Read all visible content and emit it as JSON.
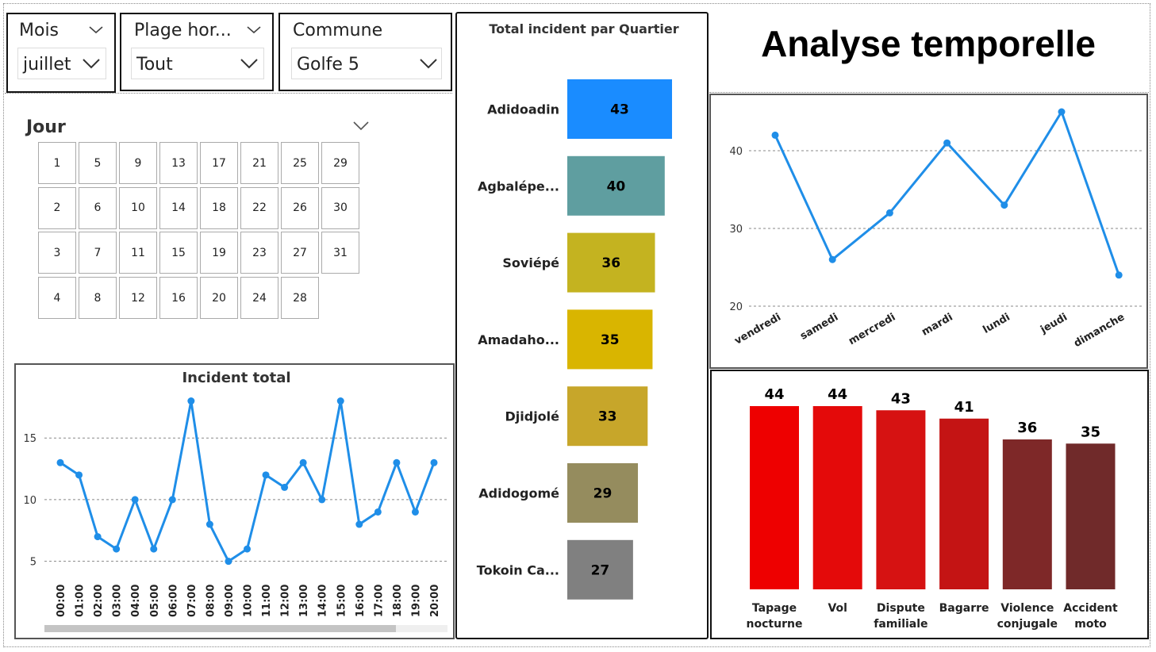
{
  "page_title": "Analyse temporelle",
  "filters": [
    {
      "label": "Mois",
      "value": "juillet"
    },
    {
      "label": "Plage hor...",
      "value": "Tout"
    },
    {
      "label": "Commune",
      "value": "Golfe 5"
    }
  ],
  "jour": {
    "label": "Jour",
    "columns": [
      [
        "1",
        "2",
        "3",
        "4"
      ],
      [
        "5",
        "6",
        "7",
        "8"
      ],
      [
        "9",
        "10",
        "11",
        "12"
      ],
      [
        "13",
        "14",
        "15",
        "16"
      ],
      [
        "17",
        "18",
        "19",
        "20"
      ],
      [
        "21",
        "22",
        "23",
        "24"
      ],
      [
        "25",
        "26",
        "27",
        "28"
      ],
      [
        "29",
        "30",
        "31"
      ]
    ]
  },
  "chart_data": [
    {
      "type": "line",
      "title": "Incident total",
      "x": [
        "00:00",
        "01:00",
        "02:00",
        "03:00",
        "04:00",
        "05:00",
        "06:00",
        "07:00",
        "08:00",
        "09:00",
        "10:00",
        "11:00",
        "12:00",
        "13:00",
        "14:00",
        "15:00",
        "16:00",
        "17:00",
        "18:00",
        "19:00",
        "20:00"
      ],
      "values": [
        13,
        12,
        7,
        6,
        10,
        6,
        10,
        18,
        8,
        5,
        6,
        12,
        11,
        13,
        10,
        18,
        8,
        9,
        13,
        9,
        13
      ],
      "yticks": [
        5,
        10,
        15
      ],
      "ylim": [
        3.5,
        19
      ],
      "color": "#1f8ee8"
    },
    {
      "type": "bar",
      "orientation": "horizontal",
      "title": "Total incident par Quartier",
      "categories": [
        "Adidoadin",
        "Agbalépe...",
        "Soviépé",
        "Amadaho...",
        "Djidjolé",
        "Adidogomé",
        "Tokoin Ca..."
      ],
      "values": [
        43,
        40,
        36,
        35,
        33,
        29,
        27
      ],
      "colors": [
        "#1a8cff",
        "#5f9ea0",
        "#c4b320",
        "#d9b500",
        "#c7a62a",
        "#958c5e",
        "#808080"
      ]
    },
    {
      "type": "line",
      "x": [
        "vendredi",
        "samedi",
        "mercredi",
        "mardi",
        "lundi",
        "jeudi",
        "dimanche"
      ],
      "values": [
        42,
        26,
        32,
        41,
        33,
        45,
        24
      ],
      "yticks": [
        20,
        30,
        40
      ],
      "ylim": [
        20,
        47
      ],
      "color": "#1f8ee8"
    },
    {
      "type": "bar",
      "categories": [
        [
          "Tapage",
          "nocturne"
        ],
        [
          "Vol"
        ],
        [
          "Dispute",
          "familiale"
        ],
        [
          "Bagarre"
        ],
        [
          "Violence",
          "conjugale"
        ],
        [
          "Accident",
          "moto"
        ]
      ],
      "values": [
        44,
        44,
        43,
        41,
        36,
        35
      ],
      "colors": [
        "#ee0000",
        "#e40a0a",
        "#d61212",
        "#c41414",
        "#7e2828",
        "#702a2a"
      ]
    }
  ]
}
